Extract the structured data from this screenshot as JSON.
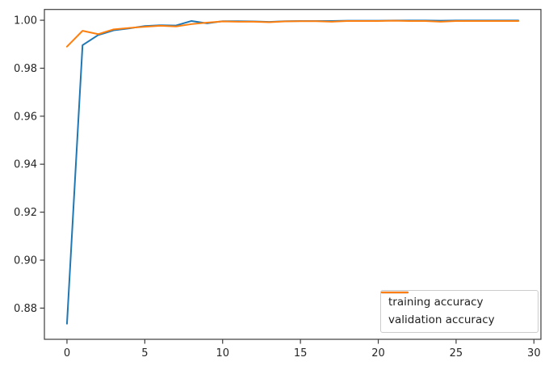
{
  "chart_data": {
    "type": "line",
    "title": "",
    "xlabel": "",
    "ylabel": "",
    "grid": false,
    "x": [
      0,
      1,
      2,
      3,
      4,
      5,
      6,
      7,
      8,
      9,
      10,
      11,
      12,
      13,
      14,
      15,
      16,
      17,
      18,
      19,
      20,
      21,
      22,
      23,
      24,
      25,
      26,
      27,
      28,
      29
    ],
    "series": [
      {
        "name": "training accuracy",
        "color": "#1f77b4",
        "values": [
          0.8735,
          0.9896,
          0.9938,
          0.9958,
          0.9966,
          0.9976,
          0.9979,
          0.9978,
          0.9997,
          0.9987,
          0.9996,
          0.9996,
          0.9995,
          0.9993,
          0.9996,
          0.9997,
          0.9997,
          0.9997,
          0.9998,
          0.9998,
          0.9998,
          0.9999,
          0.9999,
          0.9999,
          0.9998,
          0.9999,
          0.9999,
          0.9999,
          0.9999,
          0.9999
        ]
      },
      {
        "name": "validation accuracy",
        "color": "#ff7f0e",
        "values": [
          0.989,
          0.9956,
          0.9942,
          0.9962,
          0.9968,
          0.9973,
          0.9977,
          0.9974,
          0.9984,
          0.999,
          0.9995,
          0.9994,
          0.9994,
          0.9992,
          0.9995,
          0.9996,
          0.9996,
          0.9994,
          0.9997,
          0.9997,
          0.9997,
          0.9998,
          0.9997,
          0.9997,
          0.9994,
          0.9997,
          0.9997,
          0.9997,
          0.9997,
          0.9997
        ]
      }
    ],
    "xticks": [
      0,
      5,
      10,
      15,
      20,
      25,
      30
    ],
    "yticks": [
      0.88,
      0.9,
      0.92,
      0.94,
      0.96,
      0.98,
      1.0
    ],
    "ytick_labels": [
      "0.88",
      "0.90",
      "0.92",
      "0.94",
      "0.96",
      "0.98",
      "1.00"
    ],
    "xlim": [
      -1.45,
      30.45
    ],
    "ylim": [
      0.867,
      1.0045
    ],
    "legend": {
      "position": "lower right",
      "entries": [
        "training accuracy",
        "validation accuracy"
      ]
    },
    "axis_color": "#3d3d3d",
    "text_color": "#262626",
    "background_color": "#ffffff"
  }
}
